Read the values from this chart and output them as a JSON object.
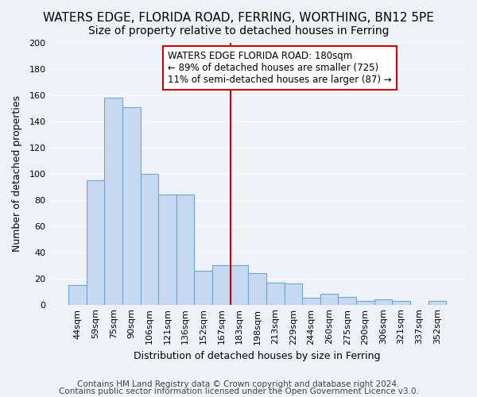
{
  "title": "WATERS EDGE, FLORIDA ROAD, FERRING, WORTHING, BN12 5PE",
  "subtitle": "Size of property relative to detached houses in Ferring",
  "xlabel": "Distribution of detached houses by size in Ferring",
  "ylabel": "Number of detached properties",
  "categories": [
    "44sqm",
    "59sqm",
    "75sqm",
    "90sqm",
    "106sqm",
    "121sqm",
    "136sqm",
    "152sqm",
    "167sqm",
    "183sqm",
    "198sqm",
    "213sqm",
    "229sqm",
    "244sqm",
    "260sqm",
    "275sqm",
    "290sqm",
    "306sqm",
    "321sqm",
    "337sqm",
    "352sqm"
  ],
  "values": [
    15,
    95,
    158,
    151,
    100,
    84,
    84,
    26,
    30,
    30,
    24,
    17,
    16,
    5,
    8,
    6,
    3,
    4,
    3,
    0,
    3
  ],
  "bar_color": "#c6d9f0",
  "bar_edge_color": "#6fa8d6",
  "vline_x_index": 9,
  "vline_color": "#cc0000",
  "ylim": [
    0,
    200
  ],
  "yticks": [
    0,
    20,
    40,
    60,
    80,
    100,
    120,
    140,
    160,
    180,
    200
  ],
  "annotation_title": "WATERS EDGE FLORIDA ROAD: 180sqm",
  "annotation_line1": "← 89% of detached houses are smaller (725)",
  "annotation_line2": "11% of semi-detached houses are larger (87) →",
  "footer1": "Contains HM Land Registry data © Crown copyright and database right 2024.",
  "footer2": "Contains public sector information licensed under the Open Government Licence v3.0.",
  "background_color": "#eef2f9",
  "grid_color": "#ffffff",
  "title_fontsize": 11,
  "subtitle_fontsize": 10,
  "axis_label_fontsize": 9,
  "tick_fontsize": 8,
  "annotation_fontsize": 8.5,
  "footer_fontsize": 7.5
}
